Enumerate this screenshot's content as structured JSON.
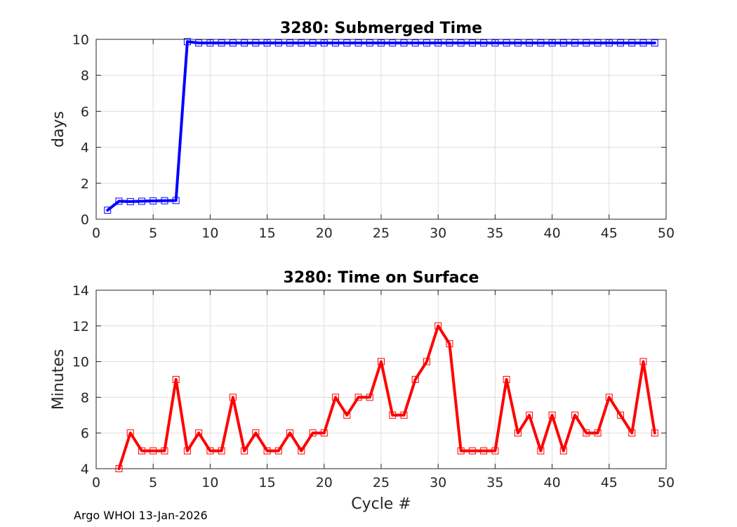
{
  "chart_data": [
    {
      "type": "line",
      "title": "3280: Submerged Time",
      "xlabel": "",
      "ylabel": "days",
      "xlim": [
        0,
        50
      ],
      "ylim": [
        0,
        10
      ],
      "xticks": [
        0,
        5,
        10,
        15,
        20,
        25,
        30,
        35,
        40,
        45,
        50
      ],
      "yticks": [
        0,
        2,
        4,
        6,
        8,
        10
      ],
      "grid": true,
      "series": [
        {
          "name": "Submerged Time",
          "color": "#0000ff",
          "marker": "square",
          "x": [
            1,
            2,
            3,
            4,
            5,
            6,
            7,
            8,
            9,
            10,
            11,
            12,
            13,
            14,
            15,
            16,
            17,
            18,
            19,
            20,
            21,
            22,
            23,
            24,
            25,
            26,
            27,
            28,
            29,
            30,
            31,
            32,
            33,
            34,
            35,
            36,
            37,
            38,
            39,
            40,
            41,
            42,
            43,
            44,
            45,
            46,
            47,
            48,
            49
          ],
          "values": [
            0.5,
            1.0,
            0.98,
            1.0,
            1.02,
            1.03,
            1.04,
            9.87,
            9.8,
            9.8,
            9.8,
            9.8,
            9.8,
            9.8,
            9.8,
            9.8,
            9.8,
            9.8,
            9.8,
            9.8,
            9.8,
            9.8,
            9.8,
            9.8,
            9.8,
            9.8,
            9.8,
            9.8,
            9.8,
            9.8,
            9.8,
            9.8,
            9.8,
            9.8,
            9.8,
            9.8,
            9.8,
            9.8,
            9.8,
            9.8,
            9.8,
            9.8,
            9.8,
            9.8,
            9.8,
            9.8,
            9.8,
            9.8,
            9.8
          ]
        }
      ]
    },
    {
      "type": "line",
      "title": "3280: Time on Surface",
      "xlabel": "Cycle #",
      "ylabel": "Minutes",
      "xlim": [
        0,
        50
      ],
      "ylim": [
        4,
        14
      ],
      "xticks": [
        0,
        5,
        10,
        15,
        20,
        25,
        30,
        35,
        40,
        45,
        50
      ],
      "yticks": [
        4,
        6,
        8,
        10,
        12,
        14
      ],
      "grid": true,
      "series": [
        {
          "name": "Time on Surface",
          "color": "#ff0000",
          "marker": "square",
          "x": [
            2,
            3,
            4,
            5,
            6,
            7,
            8,
            9,
            10,
            11,
            12,
            13,
            14,
            15,
            16,
            17,
            18,
            19,
            20,
            21,
            22,
            23,
            24,
            25,
            26,
            27,
            28,
            29,
            30,
            31,
            32,
            33,
            34,
            35,
            36,
            37,
            38,
            39,
            40,
            41,
            42,
            43,
            44,
            45,
            46,
            47,
            48,
            49
          ],
          "values": [
            4,
            6,
            5,
            5,
            5,
            9,
            5,
            6,
            5,
            5,
            8,
            5,
            6,
            5,
            5,
            6,
            5,
            6,
            6,
            8,
            7,
            8,
            8,
            10,
            7,
            7,
            9,
            10,
            12,
            11,
            5,
            5,
            5,
            5,
            9,
            6,
            7,
            5,
            7,
            5,
            7,
            6,
            6,
            8,
            7,
            6,
            10,
            6
          ]
        }
      ]
    }
  ],
  "footer": "Argo WHOI 13-Jan-2026"
}
